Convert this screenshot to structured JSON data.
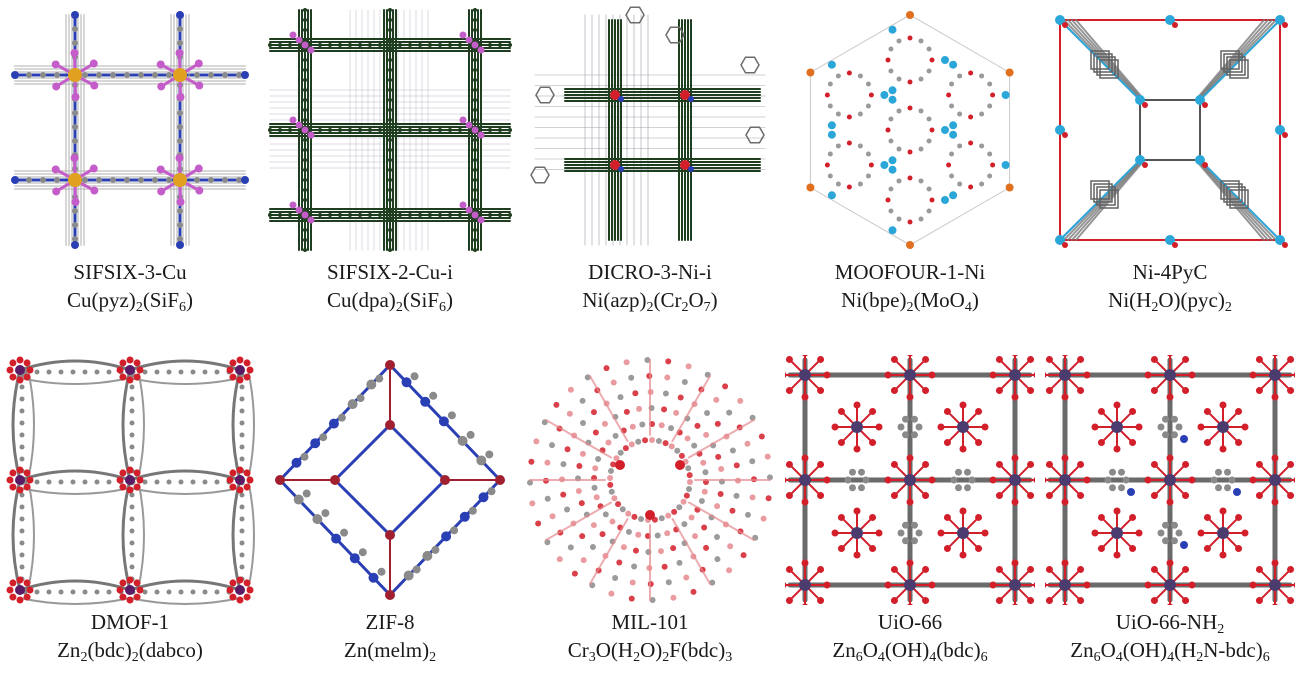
{
  "panels": [
    {
      "name": "SIFSIX-3-Cu",
      "formula": [
        "Cu(pyz)",
        "2",
        "(SiF",
        "6",
        ")"
      ]
    },
    {
      "name": "SIFSIX-2-Cu-i",
      "formula": [
        "Cu(dpa)",
        "2",
        "(SiF",
        "6",
        ")"
      ]
    },
    {
      "name": "DICRO-3-Ni-i",
      "formula": [
        "Ni(azp)",
        "2",
        "(Cr",
        "2",
        "O",
        "7",
        ")"
      ]
    },
    {
      "name": "MOOFOUR-1-Ni",
      "formula": [
        "Ni(bpe)",
        "2",
        "(MoO",
        "4",
        ")"
      ]
    },
    {
      "name": "Ni-4PyC",
      "formula": [
        "Ni(H",
        "2",
        "O)(pyc)",
        "2"
      ]
    },
    {
      "name": "DMOF-1",
      "formula": [
        "Zn",
        "2",
        "(bdc)",
        "2",
        "(dabco)"
      ]
    },
    {
      "name": "ZIF-8",
      "formula": [
        "Zn(melm)",
        "2"
      ]
    },
    {
      "name": "MIL-101",
      "formula": [
        "Cr",
        "3",
        "O(H",
        "2",
        "O)",
        "2",
        "F(bdc)",
        "3"
      ]
    },
    {
      "name": "UiO-66",
      "formula": [
        "Zn",
        "6",
        "O",
        "4",
        "(OH)",
        "4",
        "(bdc)",
        "6"
      ]
    },
    {
      "name": "UiO-66-NH",
      "name_sub": "2",
      "formula": [
        "Zn",
        "6",
        "O",
        "4",
        "(OH)",
        "4",
        "(H",
        "2",
        "N-bdc)",
        "6"
      ]
    }
  ],
  "colors": {
    "carbon": "#8a8a8a",
    "nitrogen": "#2b3fb5",
    "fluorine": "#c45cc9",
    "copper": "#e0a020",
    "framework_green": "#1f3d1f",
    "oxygen": "#d21f2a",
    "molybdenum": "#2aa7d8",
    "light_red": "#e58a8f"
  }
}
